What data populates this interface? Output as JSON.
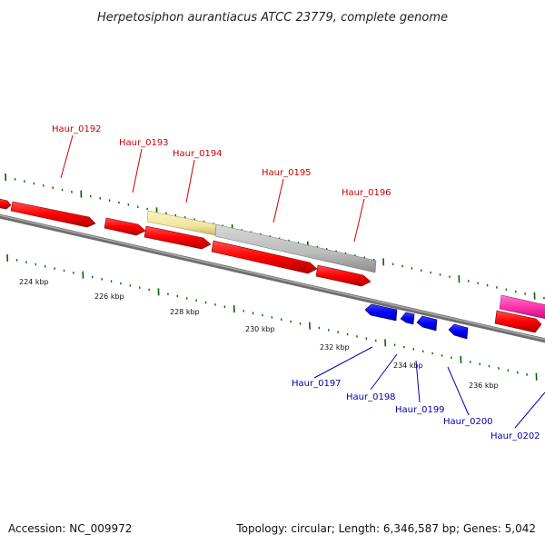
{
  "title": "Herpetosiphon aurantiacus ATCC 23779, complete genome",
  "footer": {
    "accession": "Accession: NC_009972",
    "stats": "Topology: circular; Length: 6,346,587 bp; Genes: 5,042"
  },
  "colors": {
    "forward_label": "#cc0000",
    "reverse_label": "#0000aa",
    "forward_gene": "#ff0000",
    "reverse_gene": "#0000ff",
    "pseudo_gene": "#f0e6a0",
    "rna_gene": "#bbbbbb",
    "highlight_gene": "#ff33aa",
    "ruler": "#888888",
    "tick": "#006600"
  },
  "scale_labels": [
    "224 kbp",
    "226 kbp",
    "228 kbp",
    "230 kbp",
    "232 kbp",
    "234 kbp",
    "236 kbp"
  ],
  "forward_genes": [
    {
      "label": "Haur_0192"
    },
    {
      "label": "Haur_0193"
    },
    {
      "label": "Haur_0194"
    },
    {
      "label": "Haur_0195"
    },
    {
      "label": "Haur_0196"
    }
  ],
  "reverse_genes": [
    {
      "label": "Haur_0197"
    },
    {
      "label": "Haur_0198"
    },
    {
      "label": "Haur_0199"
    },
    {
      "label": "Haur_0200"
    },
    {
      "label": "Haur_0202"
    }
  ]
}
